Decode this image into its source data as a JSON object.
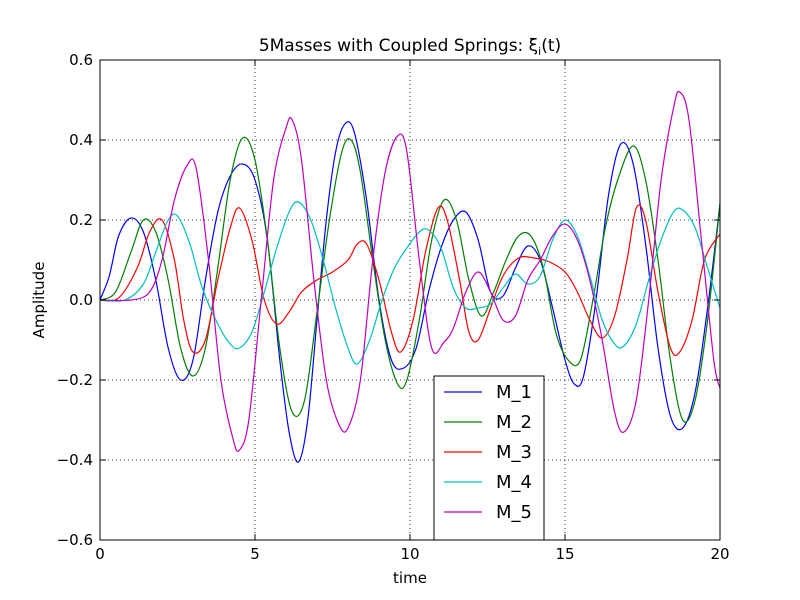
{
  "chart_data": {
    "type": "line",
    "title": "5Masses with Coupled Springs: ξ",
    "title_sub": "i",
    "title_tail": "(t)",
    "xlabel": "time",
    "ylabel": "Amplitude",
    "xlim": [
      0,
      20
    ],
    "ylim": [
      -0.6,
      0.6
    ],
    "xticks": [
      0,
      5,
      10,
      15,
      20
    ],
    "yticks": [
      -0.6,
      -0.4,
      -0.2,
      0.0,
      0.2,
      0.4,
      0.6
    ],
    "ytick_labels": [
      "−0.6",
      "−0.4",
      "−0.2",
      "0.0",
      "0.2",
      "0.4",
      "0.6"
    ],
    "grid": true,
    "legend_position": "lower-center",
    "series": [
      {
        "name": "M_1",
        "color": "#0000ff",
        "points": [
          [
            0,
            0
          ],
          [
            0.3,
            0.06
          ],
          [
            0.6,
            0.16
          ],
          [
            1.0,
            0.205
          ],
          [
            1.4,
            0.17
          ],
          [
            1.8,
            0.05
          ],
          [
            2.2,
            -0.12
          ],
          [
            2.6,
            -0.2
          ],
          [
            3.0,
            -0.15
          ],
          [
            3.4,
            0.05
          ],
          [
            3.8,
            0.22
          ],
          [
            4.2,
            0.31
          ],
          [
            4.6,
            0.34
          ],
          [
            5.0,
            0.3
          ],
          [
            5.4,
            0.15
          ],
          [
            5.8,
            -0.15
          ],
          [
            6.1,
            -0.33
          ],
          [
            6.4,
            -0.405
          ],
          [
            6.7,
            -0.3
          ],
          [
            7.0,
            -0.05
          ],
          [
            7.3,
            0.2
          ],
          [
            7.6,
            0.37
          ],
          [
            7.9,
            0.44
          ],
          [
            8.2,
            0.42
          ],
          [
            8.6,
            0.25
          ],
          [
            9.0,
            0.0
          ],
          [
            9.4,
            -0.15
          ],
          [
            9.8,
            -0.17
          ],
          [
            10.2,
            -0.12
          ],
          [
            10.6,
            0.02
          ],
          [
            11.0,
            0.13
          ],
          [
            11.4,
            0.2
          ],
          [
            11.8,
            0.22
          ],
          [
            12.2,
            0.15
          ],
          [
            12.6,
            0.02
          ],
          [
            13.0,
            0.01
          ],
          [
            13.4,
            0.08
          ],
          [
            13.8,
            0.135
          ],
          [
            14.2,
            0.1
          ],
          [
            14.6,
            -0.02
          ],
          [
            15.0,
            -0.15
          ],
          [
            15.3,
            -0.21
          ],
          [
            15.6,
            -0.19
          ],
          [
            16.0,
            0.0
          ],
          [
            16.4,
            0.26
          ],
          [
            16.8,
            0.39
          ],
          [
            17.2,
            0.34
          ],
          [
            17.6,
            0.14
          ],
          [
            18.0,
            -0.12
          ],
          [
            18.4,
            -0.29
          ],
          [
            18.8,
            -0.32
          ],
          [
            19.2,
            -0.23
          ],
          [
            19.6,
            -0.02
          ],
          [
            20.0,
            0.24
          ]
        ]
      },
      {
        "name": "M_2",
        "color": "#008000",
        "points": [
          [
            0,
            0
          ],
          [
            0.5,
            0.02
          ],
          [
            1.0,
            0.12
          ],
          [
            1.4,
            0.2
          ],
          [
            1.8,
            0.17
          ],
          [
            2.2,
            0.05
          ],
          [
            2.6,
            -0.12
          ],
          [
            3.0,
            -0.19
          ],
          [
            3.4,
            -0.12
          ],
          [
            3.8,
            0.08
          ],
          [
            4.2,
            0.3
          ],
          [
            4.6,
            0.405
          ],
          [
            5.0,
            0.35
          ],
          [
            5.4,
            0.15
          ],
          [
            5.8,
            -0.12
          ],
          [
            6.2,
            -0.28
          ],
          [
            6.6,
            -0.25
          ],
          [
            7.0,
            -0.03
          ],
          [
            7.4,
            0.2
          ],
          [
            7.8,
            0.37
          ],
          [
            8.1,
            0.4
          ],
          [
            8.4,
            0.32
          ],
          [
            8.8,
            0.1
          ],
          [
            9.2,
            -0.1
          ],
          [
            9.6,
            -0.21
          ],
          [
            9.9,
            -0.2
          ],
          [
            10.3,
            -0.05
          ],
          [
            10.7,
            0.15
          ],
          [
            11.1,
            0.25
          ],
          [
            11.5,
            0.2
          ],
          [
            11.9,
            0.05
          ],
          [
            12.3,
            -0.04
          ],
          [
            12.7,
            0.02
          ],
          [
            13.1,
            0.1
          ],
          [
            13.5,
            0.16
          ],
          [
            13.9,
            0.16
          ],
          [
            14.3,
            0.08
          ],
          [
            14.7,
            -0.08
          ],
          [
            15.1,
            -0.15
          ],
          [
            15.5,
            -0.15
          ],
          [
            15.9,
            0.0
          ],
          [
            16.3,
            0.18
          ],
          [
            16.7,
            0.3
          ],
          [
            17.2,
            0.385
          ],
          [
            17.6,
            0.3
          ],
          [
            18.0,
            0.1
          ],
          [
            18.4,
            -0.15
          ],
          [
            18.8,
            -0.3
          ],
          [
            19.2,
            -0.25
          ],
          [
            19.6,
            -0.05
          ],
          [
            20.0,
            0.24
          ]
        ]
      },
      {
        "name": "M_3",
        "color": "#ff0000",
        "points": [
          [
            0,
            0
          ],
          [
            0.6,
            0.005
          ],
          [
            1.2,
            0.08
          ],
          [
            1.6,
            0.17
          ],
          [
            2.0,
            0.2
          ],
          [
            2.4,
            0.1
          ],
          [
            2.7,
            -0.05
          ],
          [
            3.0,
            -0.13
          ],
          [
            3.4,
            -0.1
          ],
          [
            3.8,
            0.05
          ],
          [
            4.2,
            0.18
          ],
          [
            4.5,
            0.23
          ],
          [
            4.9,
            0.15
          ],
          [
            5.3,
            0.0
          ],
          [
            5.7,
            -0.06
          ],
          [
            6.1,
            -0.03
          ],
          [
            6.5,
            0.02
          ],
          [
            7.0,
            0.05
          ],
          [
            7.5,
            0.07
          ],
          [
            8.0,
            0.1
          ],
          [
            8.3,
            0.14
          ],
          [
            8.6,
            0.14
          ],
          [
            9.0,
            0.05
          ],
          [
            9.4,
            -0.08
          ],
          [
            9.7,
            -0.13
          ],
          [
            10.1,
            -0.05
          ],
          [
            10.5,
            0.12
          ],
          [
            10.9,
            0.23
          ],
          [
            11.2,
            0.2
          ],
          [
            11.6,
            0.05
          ],
          [
            11.9,
            -0.08
          ],
          [
            12.2,
            -0.1
          ],
          [
            12.6,
            -0.02
          ],
          [
            13.0,
            0.06
          ],
          [
            13.5,
            0.105
          ],
          [
            14.0,
            0.105
          ],
          [
            14.5,
            0.095
          ],
          [
            15.0,
            0.07
          ],
          [
            15.4,
            0.02
          ],
          [
            15.8,
            -0.05
          ],
          [
            16.2,
            -0.095
          ],
          [
            16.6,
            -0.04
          ],
          [
            17.0,
            0.1
          ],
          [
            17.3,
            0.23
          ],
          [
            17.6,
            0.2
          ],
          [
            18.0,
            0.02
          ],
          [
            18.4,
            -0.12
          ],
          [
            18.7,
            -0.13
          ],
          [
            19.1,
            -0.05
          ],
          [
            19.5,
            0.1
          ],
          [
            20.0,
            0.165
          ]
        ]
      },
      {
        "name": "M_4",
        "color": "#00bfbf",
        "points": [
          [
            0,
            0
          ],
          [
            0.8,
            0.0
          ],
          [
            1.4,
            0.04
          ],
          [
            1.8,
            0.12
          ],
          [
            2.2,
            0.2
          ],
          [
            2.5,
            0.21
          ],
          [
            2.9,
            0.14
          ],
          [
            3.3,
            0.03
          ],
          [
            3.8,
            -0.06
          ],
          [
            4.2,
            -0.11
          ],
          [
            4.5,
            -0.12
          ],
          [
            4.9,
            -0.08
          ],
          [
            5.3,
            0.02
          ],
          [
            5.7,
            0.13
          ],
          [
            6.1,
            0.22
          ],
          [
            6.4,
            0.245
          ],
          [
            6.8,
            0.2
          ],
          [
            7.2,
            0.1
          ],
          [
            7.6,
            -0.02
          ],
          [
            8.0,
            -0.12
          ],
          [
            8.3,
            -0.16
          ],
          [
            8.7,
            -0.1
          ],
          [
            9.1,
            0.0
          ],
          [
            9.5,
            0.08
          ],
          [
            9.9,
            0.13
          ],
          [
            10.3,
            0.17
          ],
          [
            10.6,
            0.175
          ],
          [
            11.0,
            0.13
          ],
          [
            11.4,
            0.03
          ],
          [
            11.8,
            -0.02
          ],
          [
            12.2,
            -0.02
          ],
          [
            12.6,
            -0.01
          ],
          [
            13.0,
            0.03
          ],
          [
            13.4,
            0.065
          ],
          [
            13.8,
            0.04
          ],
          [
            14.2,
            0.06
          ],
          [
            14.6,
            0.15
          ],
          [
            15.0,
            0.2
          ],
          [
            15.4,
            0.16
          ],
          [
            15.8,
            0.06
          ],
          [
            16.2,
            -0.05
          ],
          [
            16.6,
            -0.11
          ],
          [
            16.9,
            -0.115
          ],
          [
            17.3,
            -0.06
          ],
          [
            17.7,
            0.05
          ],
          [
            18.1,
            0.15
          ],
          [
            18.5,
            0.22
          ],
          [
            18.8,
            0.225
          ],
          [
            19.2,
            0.18
          ],
          [
            19.6,
            0.08
          ],
          [
            20.0,
            -0.02
          ]
        ]
      },
      {
        "name": "M_5",
        "color": "#bf00bf",
        "points": [
          [
            0,
            0
          ],
          [
            1.0,
            0.0
          ],
          [
            1.6,
            0.02
          ],
          [
            2.0,
            0.1
          ],
          [
            2.4,
            0.25
          ],
          [
            2.8,
            0.335
          ],
          [
            3.1,
            0.33
          ],
          [
            3.5,
            0.1
          ],
          [
            3.9,
            -0.2
          ],
          [
            4.3,
            -0.35
          ],
          [
            4.5,
            -0.375
          ],
          [
            4.8,
            -0.3
          ],
          [
            5.2,
            0.0
          ],
          [
            5.6,
            0.3
          ],
          [
            6.0,
            0.43
          ],
          [
            6.2,
            0.45
          ],
          [
            6.5,
            0.35
          ],
          [
            6.9,
            0.05
          ],
          [
            7.3,
            -0.2
          ],
          [
            7.7,
            -0.31
          ],
          [
            8.0,
            -0.32
          ],
          [
            8.4,
            -0.2
          ],
          [
            8.8,
            0.1
          ],
          [
            9.2,
            0.32
          ],
          [
            9.6,
            0.41
          ],
          [
            9.9,
            0.37
          ],
          [
            10.3,
            0.1
          ],
          [
            10.7,
            -0.12
          ],
          [
            11.1,
            -0.105
          ],
          [
            11.4,
            -0.07
          ],
          [
            11.8,
            0.02
          ],
          [
            12.2,
            0.07
          ],
          [
            12.6,
            0.02
          ],
          [
            13.0,
            -0.05
          ],
          [
            13.4,
            -0.04
          ],
          [
            13.8,
            0.05
          ],
          [
            14.2,
            0.1
          ],
          [
            14.6,
            0.16
          ],
          [
            15.0,
            0.19
          ],
          [
            15.4,
            0.15
          ],
          [
            15.8,
            0.05
          ],
          [
            16.2,
            -0.1
          ],
          [
            16.6,
            -0.28
          ],
          [
            16.9,
            -0.33
          ],
          [
            17.3,
            -0.25
          ],
          [
            17.7,
            0.0
          ],
          [
            18.1,
            0.3
          ],
          [
            18.5,
            0.48
          ],
          [
            18.7,
            0.52
          ],
          [
            19.0,
            0.45
          ],
          [
            19.4,
            0.15
          ],
          [
            19.8,
            -0.15
          ],
          [
            20.0,
            -0.22
          ]
        ]
      }
    ]
  }
}
